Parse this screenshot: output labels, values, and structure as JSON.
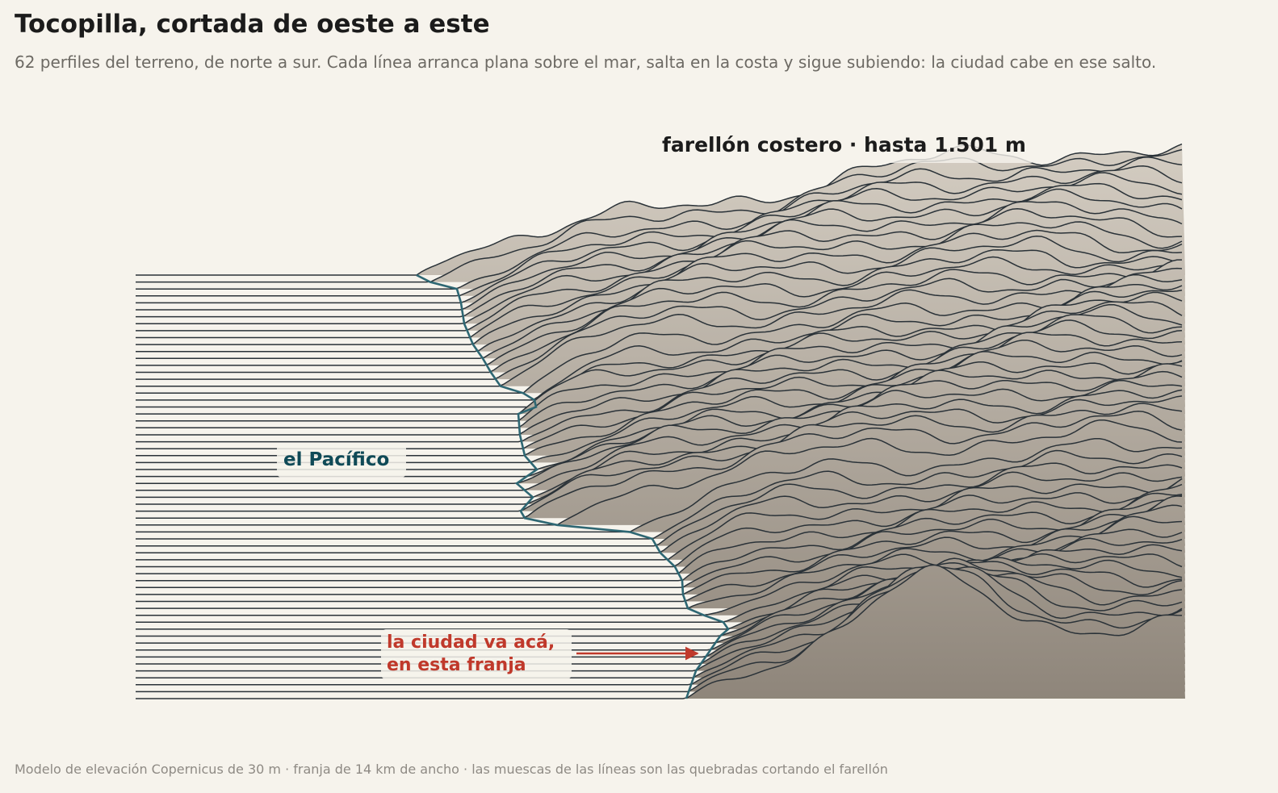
{
  "title": "Tocopilla, cortada de oeste a este",
  "subtitle": "62 perfiles del terreno, de norte a sur. Cada línea arranca plana sobre el mar, salta en la costa y sigue subiendo: la ciudad cabe en ese salto.",
  "caption": "Modelo de elevación Copernicus de 30 m · franja de 14 km de ancho · las muescas de las líneas son las quebradas cortando el farellón",
  "colors": {
    "background": "#f6f3ec",
    "profile_line": "#2a3238",
    "coastline": "#2e6773",
    "land_fill_top": "#d8d1c6",
    "land_fill_bottom": "#8e857a",
    "pacific_label": "#0f4a57",
    "city_label": "#c0392b",
    "peak_label": "#1b1b1b"
  },
  "chart_data": {
    "type": "ridgeline",
    "profile_count": 62,
    "order": "norte a sur",
    "max_elevation_m": 1501,
    "annotations": {
      "peak": "farellón costero · hasta 1.501 m",
      "sea": "el Pacífico",
      "city_line1": "la ciudad va acá,",
      "city_line2": "en esta franja"
    }
  }
}
